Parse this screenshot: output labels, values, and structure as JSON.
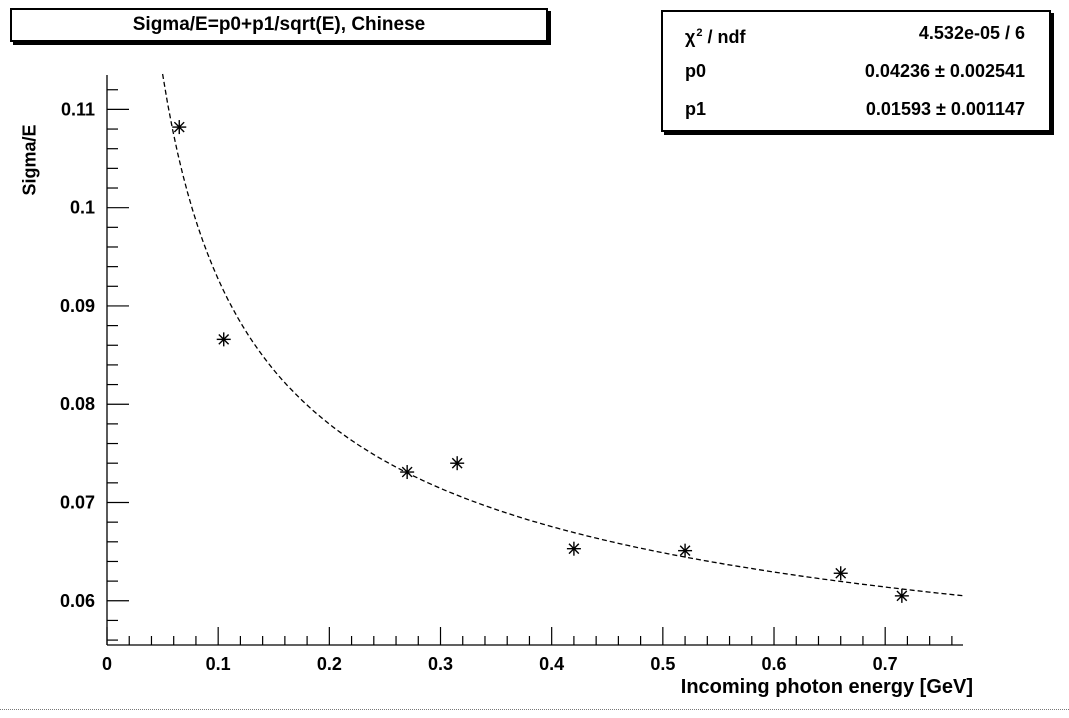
{
  "chart_data": {
    "type": "scatter",
    "title": "Sigma/E=p0+p1/sqrt(E), Chinese",
    "xlabel": "Incoming photon energy [GeV]",
    "ylabel": "Sigma/E",
    "xlim": [
      0,
      0.77
    ],
    "ylim": [
      0.0555,
      0.1135
    ],
    "x_ticks": [
      "0",
      "0.1",
      "0.2",
      "0.3",
      "0.4",
      "0.5",
      "0.6",
      "0.7"
    ],
    "y_ticks": [
      "0.06",
      "0.07",
      "0.08",
      "0.09",
      "0.1",
      "0.11"
    ],
    "marker": "asterisk",
    "points": [
      {
        "x": 0.065,
        "y": 0.1082
      },
      {
        "x": 0.105,
        "y": 0.0866
      },
      {
        "x": 0.27,
        "y": 0.0731
      },
      {
        "x": 0.315,
        "y": 0.074
      },
      {
        "x": 0.42,
        "y": 0.0653
      },
      {
        "x": 0.52,
        "y": 0.0651
      },
      {
        "x": 0.66,
        "y": 0.0628
      },
      {
        "x": 0.715,
        "y": 0.0605
      }
    ],
    "fit": {
      "formula": "p0+p1/sqrt(E)",
      "p0": 0.04236,
      "p1": 0.01593,
      "x_range": [
        0.05,
        0.77
      ],
      "style": "dashed"
    },
    "stats": [
      {
        "name": "ndf",
        "value": "4.532e-05 / 6"
      },
      {
        "name": "p0",
        "value": "0.04236",
        "sep": "±",
        "err": "0.002541"
      },
      {
        "name": "p1",
        "value": "0.01593",
        "sep": "±",
        "err": "0.001147"
      }
    ],
    "grid": false,
    "legend": "top-right"
  }
}
